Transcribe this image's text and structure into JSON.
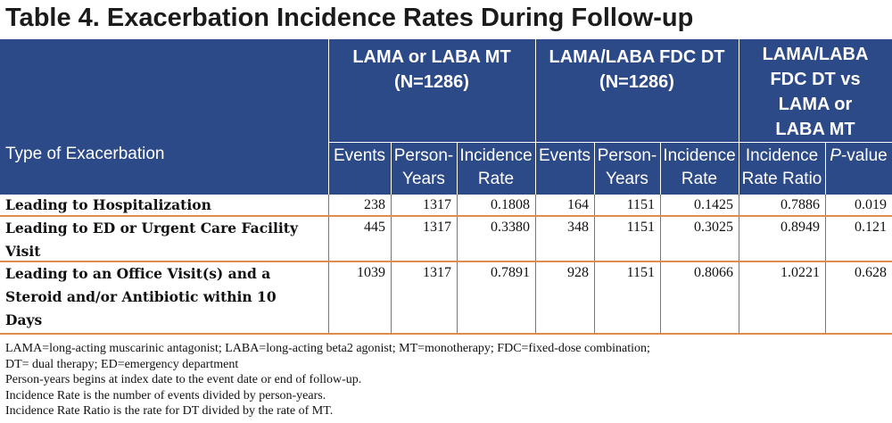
{
  "title": "Table 4. Exacerbation Incidence Rates During Follow-up",
  "header": {
    "type_label": "Type of Exacerbation",
    "groups": {
      "g1_line1": "LAMA or LABA MT",
      "g1_line2": "(N=1286)",
      "g2_line1": "LAMA/LABA FDC DT",
      "g2_line2": "(N=1286)",
      "g3_line1": "LAMA/LABA",
      "g3_line2": "FDC DT vs",
      "g3_line3": "LAMA or",
      "g3_line4": "LABA MT"
    },
    "sub": {
      "events": "Events",
      "py_line1": "Person-",
      "py_line2": "Years",
      "ir_line1": "Incidence",
      "ir_line2": "Rate",
      "irr_line1": "Incidence",
      "irr_line2": "Rate Ratio",
      "p_italic": "P",
      "p_rest": "-value"
    }
  },
  "rows": [
    {
      "label_lines": [
        "Leading to Hospitalization"
      ],
      "values": [
        "238",
        "1317",
        "0.1808",
        "164",
        "1151",
        "0.1425",
        "0.7886",
        "0.019"
      ]
    },
    {
      "label_lines": [
        "Leading to ED or Urgent Care Facility",
        "Visit"
      ],
      "values": [
        "445",
        "1317",
        "0.3380",
        "348",
        "1151",
        "0.3025",
        "0.8949",
        "0.121"
      ]
    },
    {
      "label_lines": [
        "Leading to an Office Visit(s) and a",
        "Steroid and/or Antibiotic within 10",
        "Days"
      ],
      "values": [
        "1039",
        "1317",
        "0.7891",
        "928",
        "1151",
        "0.8066",
        "1.0221",
        "0.628"
      ]
    }
  ],
  "notes": [
    "LAMA=long-acting muscarinic antagonist; LABA=long-acting beta2 agonist; MT=monotherapy; FDC=fixed-dose combination;",
    "DT= dual therapy; ED=emergency department",
    "Person-years begins at index date to the event date or end of follow-up.",
    "Incidence Rate is the number of events divided by person-years.",
    "Incidence Rate Ratio is the rate for DT divided by the rate of MT."
  ],
  "colors": {
    "header_bg": "#2d4a88",
    "row_separator": "#e08a4e"
  }
}
